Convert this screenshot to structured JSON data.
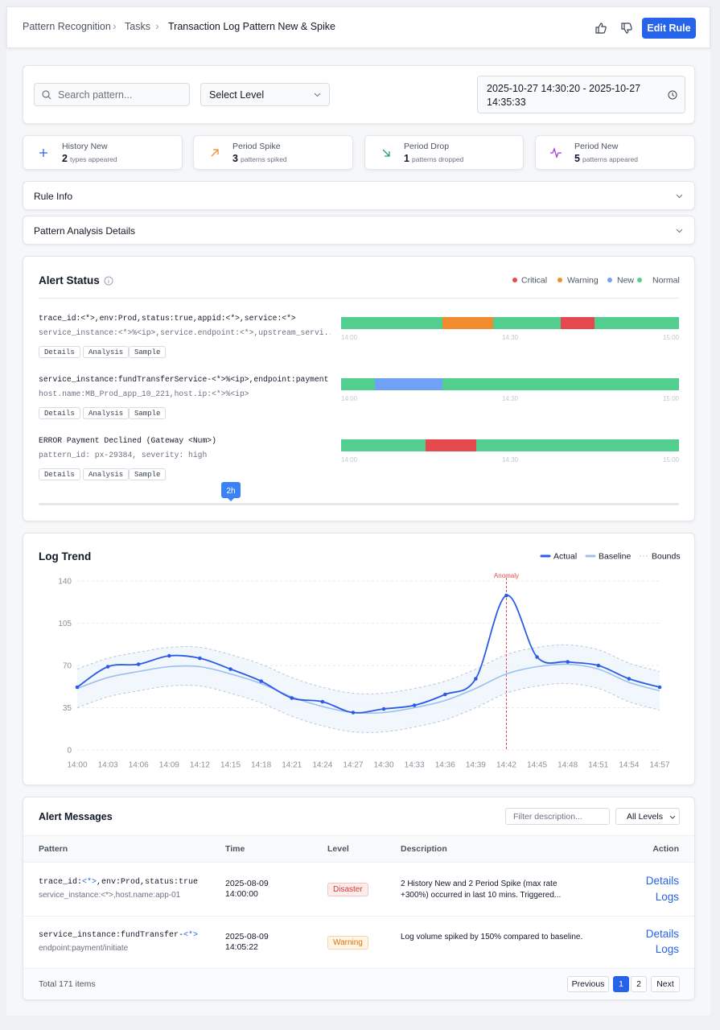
{
  "header": {
    "breadcrumb": [
      "Pattern Recognition",
      "Tasks",
      "Transaction Log Pattern New & Spike"
    ],
    "edit_button": "Edit Rule"
  },
  "filters": {
    "search_placeholder": "Search pattern...",
    "level_select": "Select Level",
    "date_range": "2025-10-27 14:30:20 - 2025-10-27 14:35:33"
  },
  "stats": [
    {
      "title": "History New",
      "count": 2,
      "note": "types appeared"
    },
    {
      "title": "Period Spike",
      "count": 3,
      "note": "patterns spiked"
    },
    {
      "title": "Period Drop",
      "count": 1,
      "note": "patterns dropped"
    },
    {
      "title": "Period New",
      "count": 5,
      "note": "patterns appeared"
    }
  ],
  "sections": [
    "Rule Info",
    "Pattern Analysis Details"
  ],
  "alert_status": {
    "title": "Alert Status",
    "legend": [
      {
        "name": "Critical",
        "color": "#e5484d"
      },
      {
        "name": "Warning",
        "color": "#f08c2e"
      },
      {
        "name": "New",
        "color": "#6fa1f4"
      },
      {
        "name": "Normal",
        "color": "#52cf8f"
      }
    ],
    "xlim": [
      0,
      60
    ],
    "xticks": [
      {
        "value": 0,
        "label": "14:00"
      },
      {
        "value": 30,
        "label": "14:30"
      },
      {
        "value": 60,
        "label": "15:00"
      }
    ],
    "actions": [
      "Details",
      "Analysis",
      "Sample"
    ],
    "patterns": [
      {
        "line1": "trace_id:<*>,env:Prod,status:true,appid:<*>,service:<*>",
        "line2": "service_instance:<*>%<ip>,service.endpoint:<*>,upstream_servi...",
        "segments": [
          {
            "status": "Normal",
            "start": 0,
            "end": 18
          },
          {
            "status": "Warning",
            "start": 18,
            "end": 27
          },
          {
            "status": "Normal",
            "start": 27,
            "end": 39
          },
          {
            "status": "Critical",
            "start": 39,
            "end": 45
          },
          {
            "status": "Normal",
            "start": 45,
            "end": 60
          }
        ]
      },
      {
        "line1": "service_instance:fundTransferService-<*>%<ip>,endpoint:payment",
        "line2": "host.name:MB_Prod_app_10_221,host.ip:<*>%<ip>",
        "segments": [
          {
            "status": "Normal",
            "start": 0,
            "end": 6
          },
          {
            "status": "New",
            "start": 6,
            "end": 18
          },
          {
            "status": "Normal",
            "start": 18,
            "end": 60
          }
        ]
      },
      {
        "line1": "ERROR Payment Declined (Gateway <Num>)",
        "line2": "pattern_id: px-29384, severity: high",
        "segments": [
          {
            "status": "Normal",
            "start": 0,
            "end": 15
          },
          {
            "status": "Critical",
            "start": 15,
            "end": 24
          },
          {
            "status": "Normal",
            "start": 24,
            "end": 60
          }
        ]
      }
    ],
    "range_badge": "2h"
  },
  "chart_data": {
    "type": "line",
    "title": "Log Trend",
    "categories": [
      "14:00",
      "14:03",
      "14:06",
      "14:09",
      "14:12",
      "14:15",
      "14:18",
      "14:21",
      "14:24",
      "14:27",
      "14:30",
      "14:33",
      "14:36",
      "14:39",
      "14:42",
      "14:45",
      "14:48",
      "14:51",
      "14:54",
      "14:57"
    ],
    "series": [
      {
        "name": "Actual",
        "color": "#2b5ce6",
        "values": [
          52,
          69,
          71,
          78,
          76,
          67,
          57,
          43,
          40,
          31,
          34,
          37,
          46,
          59,
          128,
          77,
          73,
          70,
          59,
          52
        ]
      },
      {
        "name": "Baseline",
        "color": "#9cc0ee",
        "values": [
          51,
          60,
          65,
          69,
          69,
          63,
          55,
          44,
          36,
          31,
          31,
          35,
          41,
          51,
          63,
          69,
          71,
          67,
          56,
          49
        ]
      }
    ],
    "bounds": {
      "name": "Bounds",
      "color": "#b9c6d6",
      "upper": [
        67,
        76,
        81,
        85,
        85,
        79,
        71,
        60,
        52,
        47,
        47,
        51,
        57,
        67,
        79,
        85,
        87,
        83,
        72,
        65
      ],
      "lower": [
        35,
        44,
        49,
        53,
        53,
        47,
        39,
        28,
        20,
        15,
        15,
        19,
        25,
        35,
        47,
        53,
        55,
        51,
        40,
        33
      ]
    },
    "annotation": {
      "text": "Anomaly",
      "x": "14:42",
      "color": "#e5484d"
    },
    "ylim": [
      0,
      140
    ],
    "yticks": [
      0,
      35,
      70,
      105,
      140
    ],
    "grid": true
  },
  "alert_messages": {
    "title": "Alert Messages",
    "filter_placeholder": "Filter description...",
    "level_select": "All Levels",
    "columns": [
      "Pattern",
      "Time",
      "Level",
      "Description",
      "Action"
    ],
    "actions": [
      "Details",
      "Logs"
    ],
    "rows": [
      {
        "pattern_parts": [
          "trace_id:",
          "<*>",
          ",env:Prod,status:true"
        ],
        "sub": "service_instance:<*>,host.name:app-01",
        "time": [
          "2025-08-09",
          "14:00:00"
        ],
        "level": "Disaster",
        "description": "2 History New and 2 Period Spike (max rate +300%) occurred in last 10 mins. Triggered..."
      },
      {
        "pattern_parts": [
          "service_instance:fundTransfer-",
          "<*>"
        ],
        "sub": "endpoint:payment/initiate",
        "time": [
          "2025-08-09",
          "14:05:22"
        ],
        "level": "Warning",
        "description": "Log volume spiked by 150% compared to baseline."
      }
    ],
    "total": "Total 171 items",
    "pagination": {
      "previous": "Previous",
      "pages": [
        1,
        2
      ],
      "current": 1,
      "next": "Next"
    }
  }
}
